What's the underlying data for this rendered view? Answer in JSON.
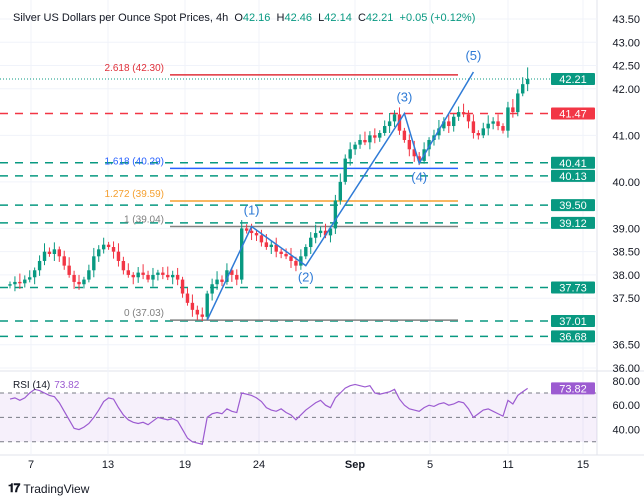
{
  "header": {
    "title": "Silver US Dollars per Ounce Spot Prices, 4h",
    "open_label": "O",
    "open": "42.16",
    "high_label": "H",
    "high": "42.46",
    "low_label": "L",
    "low": "42.14",
    "close_label": "C",
    "close": "42.21",
    "change": "+0.05 (+0.12%)"
  },
  "rsi": {
    "label": "RSI (14)",
    "value": "73.82"
  },
  "footer": {
    "brand": "TradingView",
    "logo": "TV"
  },
  "colors": {
    "up": "#089981",
    "down": "#f23645",
    "rsi": "#9c5bd1",
    "wave": "#2f7bd6",
    "fib_2618": "#e0303a",
    "fib_1618": "#2962ff",
    "fib_1272": "#f5a030",
    "fib_1": "#808080",
    "fib_0": "#808080"
  },
  "chart_data": [
    {
      "type": "candlestick",
      "title": "Silver US Dollars per Ounce Spot Prices, 4h",
      "ylim": [
        36.0,
        43.5
      ],
      "y_ticks": [
        "43.50",
        "43.00",
        "42.50",
        "42.00",
        "41.00",
        "40.00",
        "39.00",
        "38.50",
        "38.00",
        "37.50",
        "36.50",
        "36.00"
      ],
      "x_ticks": [
        "7",
        "13",
        "19",
        "24",
        "Sep",
        "5",
        "11",
        "15"
      ],
      "grid": true,
      "close": [
        37.8,
        37.85,
        37.82,
        37.9,
        37.95,
        38.1,
        38.3,
        38.5,
        38.45,
        38.55,
        38.4,
        38.2,
        38.0,
        37.85,
        37.8,
        37.9,
        38.1,
        38.4,
        38.55,
        38.65,
        38.6,
        38.5,
        38.3,
        38.1,
        38.0,
        37.95,
        38.05,
        38.0,
        37.9,
        38.0,
        38.05,
        38.0,
        37.95,
        38.0,
        37.9,
        37.6,
        37.4,
        37.25,
        37.15,
        37.1,
        37.6,
        37.8,
        37.9,
        37.85,
        38.1,
        38.0,
        37.9,
        39.0,
        38.95,
        38.9,
        38.85,
        38.7,
        38.6,
        38.65,
        38.5,
        38.45,
        38.4,
        38.3,
        38.2,
        38.4,
        38.6,
        38.8,
        38.9,
        38.95,
        38.85,
        39.0,
        39.6,
        40.0,
        40.5,
        40.7,
        40.8,
        40.9,
        40.85,
        41.0,
        40.95,
        41.05,
        41.2,
        41.3,
        41.45,
        41.1,
        40.9,
        40.7,
        40.55,
        40.45,
        40.7,
        40.9,
        41.0,
        41.15,
        41.3,
        41.2,
        41.4,
        41.5,
        41.45,
        41.3,
        41.05,
        41.0,
        41.15,
        41.25,
        41.3,
        41.2,
        41.1,
        41.6,
        41.5,
        41.9,
        42.1,
        42.21
      ],
      "last_high": 42.46,
      "current_price": "42.21",
      "levels": [
        {
          "value": "41.47",
          "color": "#f23645",
          "style": "dashed"
        },
        {
          "value": "40.41",
          "color": "#089981",
          "style": "dashed"
        },
        {
          "value": "40.13",
          "color": "#089981",
          "style": "dashed"
        },
        {
          "value": "39.50",
          "color": "#089981",
          "style": "dashed"
        },
        {
          "value": "39.12",
          "color": "#089981",
          "style": "dashed"
        },
        {
          "value": "37.73",
          "color": "#089981",
          "style": "dashed"
        },
        {
          "value": "37.01",
          "color": "#089981",
          "style": "dashed"
        },
        {
          "value": "36.68",
          "color": "#089981",
          "style": "dashed"
        }
      ],
      "fibonacci": [
        {
          "label": "2.618 (42.30)",
          "value": 42.3,
          "color": "#e0303a"
        },
        {
          "label": "1.618 (40.29)",
          "value": 40.29,
          "color": "#2962ff"
        },
        {
          "label": "1.272 (39.59)",
          "value": 39.59,
          "color": "#f5a030"
        },
        {
          "label": "1 (39.04)",
          "value": 39.04,
          "color": "#808080"
        },
        {
          "label": "0 (37.03)",
          "value": 37.03,
          "color": "#808080"
        }
      ],
      "elliott_waves": [
        {
          "label": "",
          "price": 37.03,
          "index": 40
        },
        {
          "label": "(1)",
          "price": 39.04,
          "index": 49
        },
        {
          "label": "(2)",
          "price": 38.2,
          "index": 60
        },
        {
          "label": "(3)",
          "price": 41.47,
          "index": 80
        },
        {
          "label": "(4)",
          "price": 40.4,
          "index": 83
        },
        {
          "label": "(5)",
          "price": 42.36,
          "index": 94
        }
      ]
    },
    {
      "type": "line",
      "title": "RSI (14)",
      "ylim": [
        20,
        85
      ],
      "y_ticks": [
        "80.00",
        "60.00",
        "40.00"
      ],
      "bands": [
        70,
        50,
        30
      ],
      "current": "73.82",
      "values": [
        65,
        66,
        64,
        66,
        70,
        73,
        72,
        70,
        68,
        67,
        62,
        55,
        48,
        41,
        40,
        42,
        45,
        50,
        56,
        63,
        66,
        65,
        58,
        52,
        48,
        46,
        45,
        46,
        44,
        47,
        50,
        49,
        48,
        49,
        47,
        40,
        33,
        30,
        29,
        28,
        50,
        53,
        54,
        53,
        57,
        55,
        54,
        70,
        69,
        68,
        66,
        63,
        58,
        56,
        55,
        57,
        54,
        52,
        48,
        52,
        56,
        59,
        62,
        64,
        60,
        58,
        66,
        70,
        74,
        76,
        77,
        76,
        75,
        76,
        70,
        69,
        70,
        71,
        73,
        65,
        60,
        57,
        56,
        55,
        58,
        60,
        59,
        61,
        62,
        60,
        61,
        63,
        62,
        57,
        50,
        53,
        56,
        57,
        55,
        53,
        51,
        64,
        61,
        68,
        71,
        73.82
      ]
    }
  ]
}
